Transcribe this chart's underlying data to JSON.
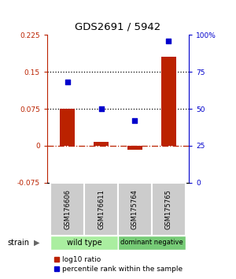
{
  "title": "GDS2691 / 5942",
  "samples": [
    "GSM176606",
    "GSM176611",
    "GSM175764",
    "GSM175765"
  ],
  "log10_ratio": [
    0.075,
    0.008,
    -0.008,
    0.18
  ],
  "percentile_rank": [
    0.68,
    0.5,
    0.42,
    0.96
  ],
  "groups": [
    {
      "label": "wild type",
      "samples": [
        0,
        1
      ],
      "color": "#aaeea0"
    },
    {
      "label": "dominant negative",
      "samples": [
        2,
        3
      ],
      "color": "#77cc77"
    }
  ],
  "bar_color": "#bb2200",
  "dot_color": "#0000cc",
  "left_ylim": [
    -0.075,
    0.225
  ],
  "right_ylim": [
    0,
    1.0
  ],
  "left_yticks": [
    -0.075,
    0.0,
    0.075,
    0.15,
    0.225
  ],
  "left_ytick_labels": [
    "-0.075",
    "0",
    "0.075",
    "0.15",
    "0.225"
  ],
  "right_yticks": [
    0.0,
    0.25,
    0.5,
    0.75,
    1.0
  ],
  "right_ytick_labels": [
    "0",
    "25",
    "50",
    "75",
    "100%"
  ],
  "hline_y_left": [
    0.075,
    0.15
  ],
  "legend_red_label": "log10 ratio",
  "legend_blue_label": "percentile rank within the sample",
  "strain_label": "strain",
  "bg_color_samples": "#cccccc",
  "bar_width": 0.45
}
